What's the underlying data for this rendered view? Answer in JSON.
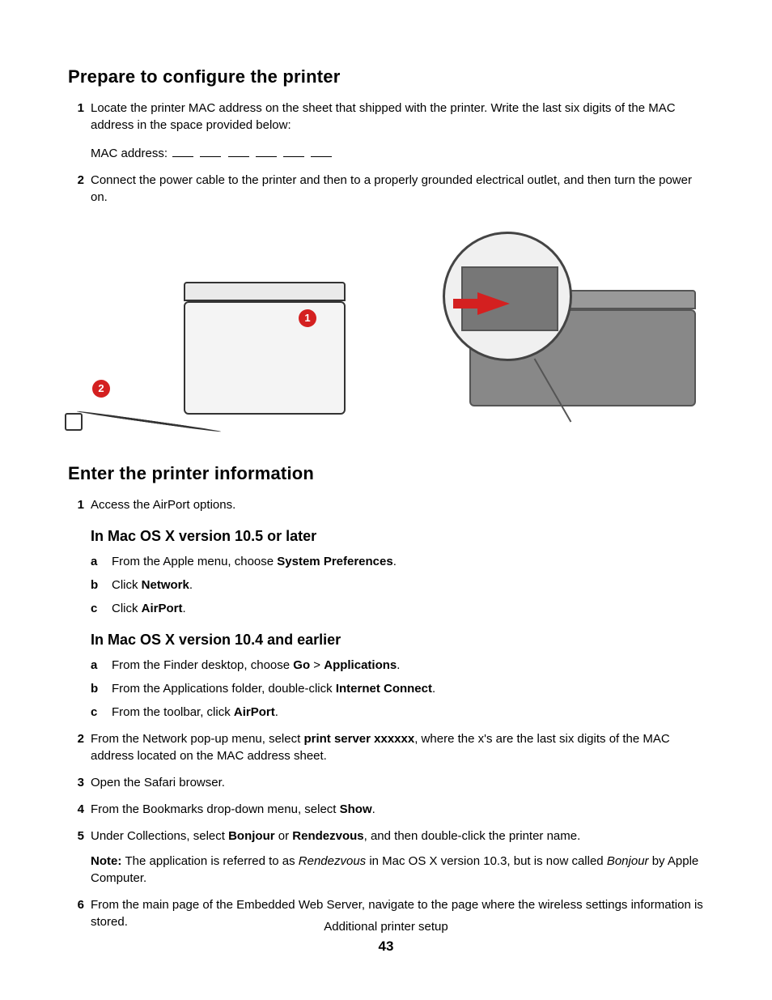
{
  "section1": {
    "heading": "Prepare to configure the printer",
    "step1": "Locate the printer MAC address on the sheet that shipped with the printer. Write the last six digits of the MAC address in the space provided below:",
    "mac_label": "MAC address:",
    "step2": "Connect the power cable to the printer and then to a properly grounded electrical outlet, and then turn the power on."
  },
  "callouts": {
    "c1": "1",
    "c2": "2"
  },
  "section2": {
    "heading": "Enter the printer information",
    "step1": "Access the AirPort options.",
    "sub105_heading": "In Mac OS X version 10.5 or later",
    "s105_a_pre": "From the Apple menu, choose ",
    "s105_a_bold": "System Preferences",
    "s105_a_post": ".",
    "s105_b_pre": "Click ",
    "s105_b_bold": "Network",
    "s105_b_post": ".",
    "s105_c_pre": "Click ",
    "s105_c_bold": "AirPort",
    "s105_c_post": ".",
    "sub104_heading": "In Mac OS X version 10.4 and earlier",
    "s104_a_pre": "From the Finder desktop, choose ",
    "s104_a_bold1": "Go",
    "s104_a_mid": " > ",
    "s104_a_bold2": "Applications",
    "s104_a_post": ".",
    "s104_b_pre": "From the Applications folder, double-click ",
    "s104_b_bold": "Internet Connect",
    "s104_b_post": ".",
    "s104_c_pre": "From the toolbar, click ",
    "s104_c_bold": "AirPort",
    "s104_c_post": ".",
    "step2_pre": "From the Network pop-up menu, select ",
    "step2_bold": "print server xxxxxx",
    "step2_post": ", where the x's are the last six digits of the MAC address located on the MAC address sheet.",
    "step3": "Open the Safari browser.",
    "step4_pre": "From the Bookmarks drop-down menu, select ",
    "step4_bold": "Show",
    "step4_post": ".",
    "step5_pre": "Under Collections, select ",
    "step5_bold1": "Bonjour",
    "step5_mid": " or ",
    "step5_bold2": "Rendezvous",
    "step5_post": ", and then double-click the printer name.",
    "note_bold": "Note: ",
    "note_pre": "The application is referred to as ",
    "note_it1": "Rendezvous",
    "note_mid": " in Mac OS X version 10.3, but is now called ",
    "note_it2": "Bonjour",
    "note_post": " by Apple Computer.",
    "step6": "From the main page of the Embedded Web Server, navigate to the page where the wireless settings information is stored."
  },
  "footer": {
    "title": "Additional printer setup",
    "page": "43"
  },
  "colors": {
    "accent": "#d42020",
    "text": "#000000",
    "bg": "#ffffff"
  }
}
